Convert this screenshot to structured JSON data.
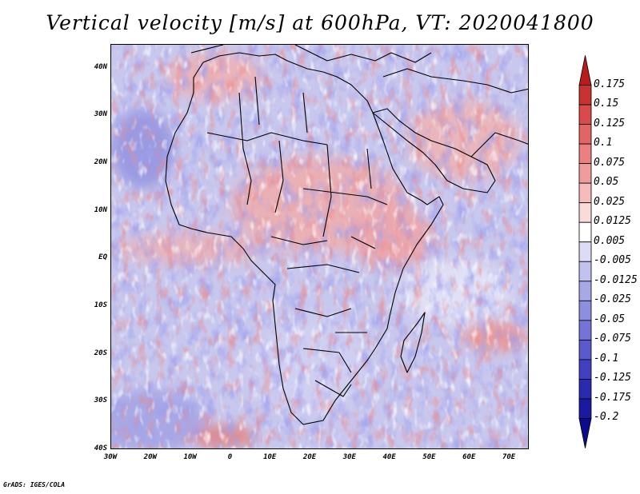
{
  "title": "Vertical velocity [m/s] at 600hPa, VT: 2020041800",
  "credit": "GrADS: IGES/COLA",
  "map": {
    "variable": "vertical velocity",
    "units": "m/s",
    "level": "600hPa",
    "valid_time": "2020041800",
    "lon_range": [
      -30,
      75
    ],
    "lat_range": [
      -40,
      45
    ],
    "lat_labels": [
      "40N",
      "30N",
      "20N",
      "10N",
      "EQ",
      "10S",
      "20S",
      "30S",
      "40S"
    ],
    "lat_values": [
      40,
      30,
      20,
      10,
      0,
      -10,
      -20,
      -30,
      -40
    ],
    "lon_labels": [
      "30W",
      "20W",
      "10W",
      "0",
      "10E",
      "20E",
      "30E",
      "40E",
      "50E",
      "60E",
      "70E"
    ],
    "lon_values": [
      -30,
      -20,
      -10,
      0,
      10,
      20,
      30,
      40,
      50,
      60,
      70
    ]
  },
  "colorbar": {
    "labels": [
      "0.175",
      "0.15",
      "0.125",
      "0.1",
      "0.075",
      "0.05",
      "0.025",
      "0.0125",
      "0.005",
      "-0.005",
      "-0.0125",
      "-0.025",
      "-0.05",
      "-0.075",
      "-0.1",
      "-0.125",
      "-0.175",
      "-0.2"
    ],
    "colors": [
      "#b81c1c",
      "#c93232",
      "#d94a4a",
      "#e26464",
      "#ea8080",
      "#f09c9c",
      "#f6bcbc",
      "#fbdada",
      "#ffffff",
      "#dcdcf6",
      "#c2c2ef",
      "#a8a8e7",
      "#8e8edf",
      "#7474d6",
      "#5a5acc",
      "#4040c0",
      "#2a2ab0",
      "#1a1aa0",
      "#0b0b8c"
    ]
  }
}
